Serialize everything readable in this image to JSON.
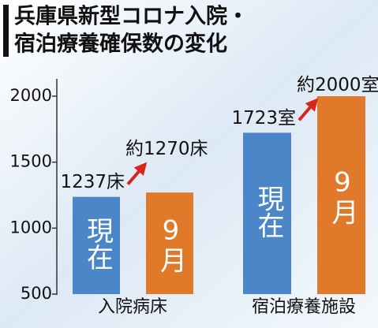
{
  "chart_data": {
    "type": "bar",
    "title": [
      "兵庫県新型コロナ入院・",
      "宿泊療養確保数の変化"
    ],
    "categories": [
      "入院病床",
      "宿泊療養施設"
    ],
    "series": [
      {
        "name": "現在",
        "color": "#4a86c8",
        "values": [
          1237,
          1723
        ],
        "value_labels": [
          "1237床",
          "1723室"
        ]
      },
      {
        "name": "9月",
        "color": "#e07a2a",
        "values": [
          1270,
          2000
        ],
        "value_labels": [
          "約1270床",
          "約2000室"
        ]
      }
    ],
    "ylim": [
      500,
      2000
    ],
    "yticks": [
      500,
      1000,
      1500,
      2000
    ]
  }
}
